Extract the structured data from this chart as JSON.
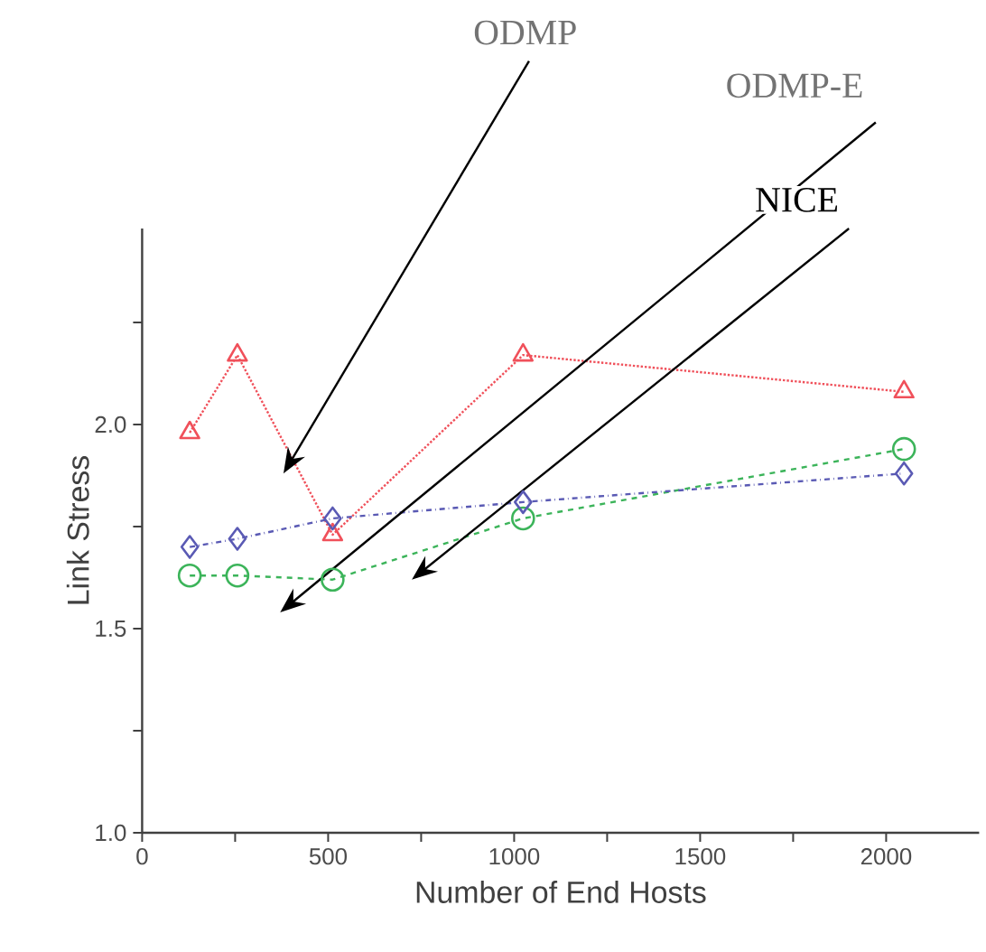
{
  "chart_data": {
    "type": "line",
    "xlabel": "Number of End Hosts",
    "ylabel": "Link Stress",
    "x": [
      128,
      256,
      512,
      1024,
      2048
    ],
    "series": [
      {
        "color": "#f0505a",
        "marker": "triangle",
        "line_style": "dotted",
        "values": [
          1.98,
          2.17,
          1.73,
          2.17,
          2.08
        ]
      },
      {
        "color": "#3cb45a",
        "marker": "circle",
        "line_style": "dashed",
        "values": [
          1.63,
          1.63,
          1.62,
          1.77,
          1.94
        ]
      },
      {
        "color": "#5a5ab4",
        "marker": "diamond",
        "line_style": "dashdot",
        "values": [
          1.7,
          1.72,
          1.77,
          1.81,
          1.88
        ]
      }
    ],
    "xlim": [
      0,
      2250
    ],
    "ylim": [
      1.0,
      2.48
    ],
    "xticks": [
      0,
      {
        "value": 250,
        "label": null
      },
      500,
      {
        "value": 750,
        "label": null
      },
      1000,
      {
        "value": 1250,
        "label": null
      },
      1500,
      {
        "value": 1750,
        "label": null
      },
      2000
    ],
    "yticks": [
      {
        "value": 1.0,
        "label": "1.0"
      },
      {
        "value": 1.25,
        "label": null
      },
      {
        "value": 1.5,
        "label": "1.5"
      },
      {
        "value": 1.75,
        "label": null
      },
      {
        "value": 2.0,
        "label": "2.0"
      },
      {
        "value": 2.25,
        "label": null
      }
    ],
    "annotations": [
      "ODMP",
      "ODMP-E",
      "NICE"
    ]
  }
}
